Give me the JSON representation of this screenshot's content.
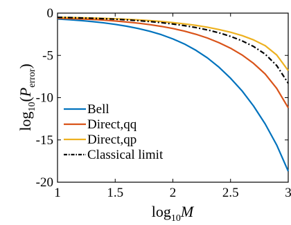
{
  "chart_data": {
    "type": "line",
    "xlabel": {
      "base": "log",
      "sub": "10",
      "var": "M"
    },
    "ylabel": {
      "base": "log",
      "sub": "10",
      "open": "(",
      "var": "P",
      "varsub": "error",
      "close": ")"
    },
    "xlim": [
      1,
      3
    ],
    "ylim": [
      -20,
      0
    ],
    "x_ticks": [
      1,
      1.5,
      2,
      2.5,
      3
    ],
    "x_tick_labels": [
      "1",
      "1.5",
      "2",
      "2.5",
      "3"
    ],
    "y_ticks": [
      0,
      -5,
      -10,
      -15,
      -20
    ],
    "y_tick_labels": [
      "0",
      "-5",
      "-10",
      "-15",
      "-20"
    ],
    "grid": false,
    "legend_position": "bottom-left",
    "series": [
      {
        "name": "Bell",
        "color": "#0072BD",
        "style": "solid",
        "x": [
          1.0,
          1.1,
          1.2,
          1.3,
          1.4,
          1.5,
          1.6,
          1.7,
          1.8,
          1.9,
          2.0,
          2.1,
          2.2,
          2.3,
          2.4,
          2.5,
          2.6,
          2.7,
          2.8,
          2.9,
          3.0
        ],
        "y": [
          -0.7,
          -0.78,
          -0.88,
          -1.0,
          -1.15,
          -1.33,
          -1.55,
          -1.82,
          -2.15,
          -2.55,
          -3.05,
          -3.65,
          -4.4,
          -5.3,
          -6.4,
          -7.7,
          -9.2,
          -11.0,
          -13.1,
          -15.6,
          -18.7
        ]
      },
      {
        "name": "Direct,qq",
        "color": "#D95319",
        "style": "solid",
        "x": [
          1.0,
          1.1,
          1.2,
          1.3,
          1.4,
          1.5,
          1.6,
          1.7,
          1.8,
          1.9,
          2.0,
          2.1,
          2.2,
          2.3,
          2.4,
          2.5,
          2.6,
          2.7,
          2.8,
          2.9,
          3.0
        ],
        "y": [
          -0.6,
          -0.64,
          -0.69,
          -0.75,
          -0.83,
          -0.93,
          -1.05,
          -1.19,
          -1.36,
          -1.57,
          -1.82,
          -2.13,
          -2.5,
          -2.95,
          -3.5,
          -4.15,
          -4.95,
          -5.95,
          -7.2,
          -8.9,
          -11.2
        ]
      },
      {
        "name": "Direct,qp",
        "color": "#EDB120",
        "style": "solid",
        "x": [
          1.0,
          1.1,
          1.2,
          1.3,
          1.4,
          1.5,
          1.6,
          1.7,
          1.8,
          1.9,
          2.0,
          2.1,
          2.2,
          2.3,
          2.4,
          2.5,
          2.6,
          2.7,
          2.8,
          2.9,
          3.0
        ],
        "y": [
          -0.5,
          -0.52,
          -0.55,
          -0.58,
          -0.62,
          -0.67,
          -0.73,
          -0.8,
          -0.89,
          -0.99,
          -1.12,
          -1.27,
          -1.45,
          -1.67,
          -1.94,
          -2.26,
          -2.66,
          -3.17,
          -3.85,
          -4.95,
          -6.8
        ]
      },
      {
        "name": "Classical limit",
        "color": "#000000",
        "style": "dashdot",
        "x": [
          1.0,
          1.1,
          1.2,
          1.3,
          1.4,
          1.5,
          1.6,
          1.7,
          1.8,
          1.9,
          2.0,
          2.1,
          2.2,
          2.3,
          2.4,
          2.5,
          2.6,
          2.7,
          2.8,
          2.9,
          3.0
        ],
        "y": [
          -0.5,
          -0.53,
          -0.57,
          -0.61,
          -0.66,
          -0.72,
          -0.8,
          -0.89,
          -1.0,
          -1.13,
          -1.29,
          -1.48,
          -1.71,
          -1.99,
          -2.33,
          -2.75,
          -3.28,
          -3.95,
          -4.85,
          -6.2,
          -8.3
        ]
      }
    ]
  }
}
